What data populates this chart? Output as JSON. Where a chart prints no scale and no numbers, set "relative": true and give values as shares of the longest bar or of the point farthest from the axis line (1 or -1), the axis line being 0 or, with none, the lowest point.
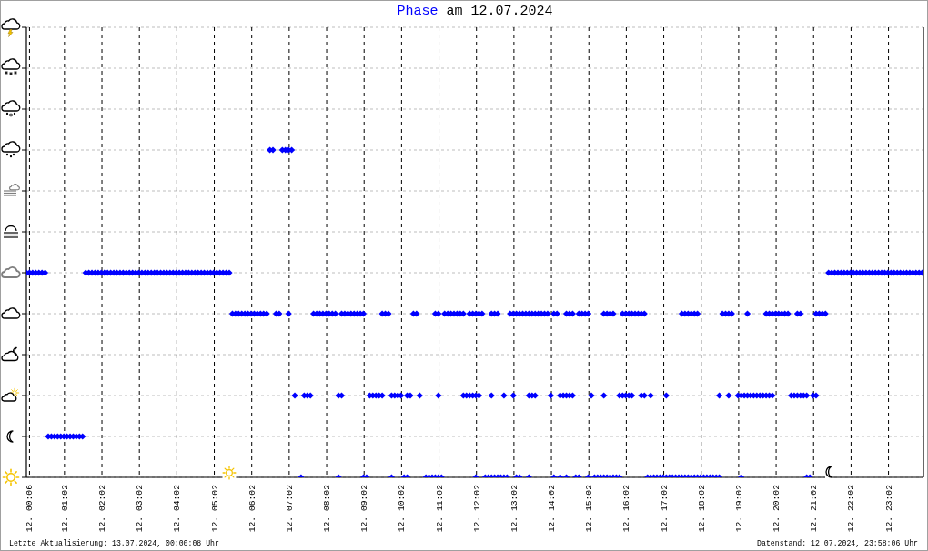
{
  "chart_data": {
    "type": "scatter",
    "title": "Phase am 12.07.2024",
    "annotations": [
      "Letzte Aktualisierung: 13.07.2024, 00:00:08 Uhr",
      "Datenstand: 12.07.2024, 23:58:06 Uhr"
    ],
    "xlim": [
      "2024-07-12T00:01",
      "2024-07-12T23:58"
    ],
    "xticks": [
      {
        "value": "2024-07-12T00:06",
        "label": "12. 00:06"
      },
      {
        "value": "2024-07-12T01:02",
        "label": "12. 01:02"
      },
      {
        "value": "2024-07-12T02:02",
        "label": "12. 02:02"
      },
      {
        "value": "2024-07-12T03:02",
        "label": "12. 03:02"
      },
      {
        "value": "2024-07-12T04:02",
        "label": "12. 04:02"
      },
      {
        "value": "2024-07-12T05:02",
        "label": "12. 05:02"
      },
      {
        "value": "2024-07-12T06:02",
        "label": "12. 06:02"
      },
      {
        "value": "2024-07-12T07:02",
        "label": "12. 07:02"
      },
      {
        "value": "2024-07-12T08:02",
        "label": "12. 08:02"
      },
      {
        "value": "2024-07-12T09:02",
        "label": "12. 09:02"
      },
      {
        "value": "2024-07-12T10:02",
        "label": "12. 10:02"
      },
      {
        "value": "2024-07-12T11:02",
        "label": "12. 11:02"
      },
      {
        "value": "2024-07-12T12:02",
        "label": "12. 12:02"
      },
      {
        "value": "2024-07-12T13:02",
        "label": "12. 13:02"
      },
      {
        "value": "2024-07-12T14:02",
        "label": "12. 14:02"
      },
      {
        "value": "2024-07-12T15:02",
        "label": "12. 15:02"
      },
      {
        "value": "2024-07-12T16:02",
        "label": "12. 16:02"
      },
      {
        "value": "2024-07-12T17:02",
        "label": "12. 17:02"
      },
      {
        "value": "2024-07-12T18:02",
        "label": "12. 18:02"
      },
      {
        "value": "2024-07-12T19:02",
        "label": "12. 19:02"
      },
      {
        "value": "2024-07-12T20:02",
        "label": "12. 20:02"
      },
      {
        "value": "2024-07-12T21:02",
        "label": "12. 21:02"
      },
      {
        "value": "2024-07-12T22:02",
        "label": "12. 22:02"
      },
      {
        "value": "2024-07-12T23:02",
        "label": "12. 23:02"
      }
    ],
    "relative": true,
    "tick_labels": "x",
    "grid": true,
    "marker": "diamond",
    "color": "#0000ff",
    "x": [
      "2024-07-12T00:01",
      "2024-07-12T00:06",
      "2024-07-12T00:11",
      "2024-07-12T00:16",
      "2024-07-12T00:21",
      "2024-07-12T00:26",
      "2024-07-12T00:31",
      "2024-07-12T01:36",
      "2024-07-12T01:41",
      "2024-07-12T01:46",
      "2024-07-12T01:51",
      "2024-07-12T01:56",
      "2024-07-12T02:01",
      "2024-07-12T02:06",
      "2024-07-12T02:11",
      "2024-07-12T02:16",
      "2024-07-12T02:21",
      "2024-07-12T02:26",
      "2024-07-12T02:31",
      "2024-07-12T02:36",
      "2024-07-12T02:41",
      "2024-07-12T02:46",
      "2024-07-12T02:51",
      "2024-07-12T02:56",
      "2024-07-12T03:01",
      "2024-07-12T03:06",
      "2024-07-12T03:11",
      "2024-07-12T03:16",
      "2024-07-12T03:21",
      "2024-07-12T03:26",
      "2024-07-12T03:31",
      "2024-07-12T03:36",
      "2024-07-12T03:41",
      "2024-07-12T03:46",
      "2024-07-12T03:51",
      "2024-07-12T03:56",
      "2024-07-12T04:01",
      "2024-07-12T04:06",
      "2024-07-12T04:11",
      "2024-07-12T04:16",
      "2024-07-12T04:21",
      "2024-07-12T04:26",
      "2024-07-12T04:31",
      "2024-07-12T04:36",
      "2024-07-12T04:41",
      "2024-07-12T04:46",
      "2024-07-12T04:51",
      "2024-07-12T04:56",
      "2024-07-12T05:01",
      "2024-07-12T05:06",
      "2024-07-12T05:11",
      "2024-07-12T05:16",
      "2024-07-12T05:21",
      "2024-07-12T05:26",
      "2024-07-12T21:26",
      "2024-07-12T21:31",
      "2024-07-12T21:36",
      "2024-07-12T21:41",
      "2024-07-12T21:46",
      "2024-07-12T21:51",
      "2024-07-12T21:56",
      "2024-07-12T22:01",
      "2024-07-12T22:06",
      "2024-07-12T22:11",
      "2024-07-12T22:16",
      "2024-07-12T22:21",
      "2024-07-12T22:26",
      "2024-07-12T22:31",
      "2024-07-12T22:36",
      "2024-07-12T22:41",
      "2024-07-12T22:46",
      "2024-07-12T22:51",
      "2024-07-12T22:56",
      "2024-07-12T23:01",
      "2024-07-12T23:06",
      "2024-07-12T23:11",
      "2024-07-12T23:16",
      "2024-07-12T23:21",
      "2024-07-12T23:26",
      "2024-07-12T23:31",
      "2024-07-12T23:36",
      "2024-07-12T23:41",
      "2024-07-12T23:46",
      "2024-07-12T23:51",
      "2024-07-12T23:56",
      "2024-07-12T00:36",
      "2024-07-12T00:41",
      "2024-07-12T00:46",
      "2024-07-12T00:51",
      "2024-07-12T00:56",
      "2024-07-12T01:01",
      "2024-07-12T01:06",
      "2024-07-12T01:11",
      "2024-07-12T01:16",
      "2024-07-12T01:21",
      "2024-07-12T01:26",
      "2024-07-12T01:31",
      "2024-07-12T06:31",
      "2024-07-12T06:36",
      "2024-07-12T06:51",
      "2024-07-12T06:56",
      "2024-07-12T07:01",
      "2024-07-12T07:06",
      "2024-07-12T05:31",
      "2024-07-12T05:36",
      "2024-07-12T05:41",
      "2024-07-12T05:46",
      "2024-07-12T05:51",
      "2024-07-12T05:56",
      "2024-07-12T06:01",
      "2024-07-12T06:06",
      "2024-07-12T06:11",
      "2024-07-12T06:16",
      "2024-07-12T06:21",
      "2024-07-12T06:26",
      "2024-07-12T06:41",
      "2024-07-12T06:46",
      "2024-07-12T07:01",
      "2024-07-12T07:41",
      "2024-07-12T07:46",
      "2024-07-12T07:51",
      "2024-07-12T07:56",
      "2024-07-12T08:01",
      "2024-07-12T08:06",
      "2024-07-12T08:11",
      "2024-07-12T08:16",
      "2024-07-12T08:26",
      "2024-07-12T08:31",
      "2024-07-12T08:36",
      "2024-07-12T08:41",
      "2024-07-12T08:46",
      "2024-07-12T08:51",
      "2024-07-12T08:56",
      "2024-07-12T09:01",
      "2024-07-12T09:31",
      "2024-07-12T09:36",
      "2024-07-12T09:41",
      "2024-07-12T10:21",
      "2024-07-12T10:26",
      "2024-07-12T10:56",
      "2024-07-12T11:01",
      "2024-07-12T11:11",
      "2024-07-12T11:16",
      "2024-07-12T11:21",
      "2024-07-12T11:26",
      "2024-07-12T11:31",
      "2024-07-12T11:36",
      "2024-07-12T11:41",
      "2024-07-12T11:51",
      "2024-07-12T11:56",
      "2024-07-12T12:01",
      "2024-07-12T12:06",
      "2024-07-12T12:11",
      "2024-07-12T12:26",
      "2024-07-12T12:31",
      "2024-07-12T12:36",
      "2024-07-12T12:56",
      "2024-07-12T13:01",
      "2024-07-12T13:06",
      "2024-07-12T13:11",
      "2024-07-12T13:16",
      "2024-07-12T13:21",
      "2024-07-12T13:26",
      "2024-07-12T13:31",
      "2024-07-12T13:36",
      "2024-07-12T13:41",
      "2024-07-12T13:46",
      "2024-07-12T13:51",
      "2024-07-12T13:56",
      "2024-07-12T14:06",
      "2024-07-12T14:11",
      "2024-07-12T14:26",
      "2024-07-12T14:31",
      "2024-07-12T14:36",
      "2024-07-12T14:46",
      "2024-07-12T14:51",
      "2024-07-12T14:56",
      "2024-07-12T15:01",
      "2024-07-12T15:26",
      "2024-07-12T15:31",
      "2024-07-12T15:36",
      "2024-07-12T15:41",
      "2024-07-12T15:56",
      "2024-07-12T16:01",
      "2024-07-12T16:06",
      "2024-07-12T16:11",
      "2024-07-12T16:16",
      "2024-07-12T16:21",
      "2024-07-12T16:26",
      "2024-07-12T16:31",
      "2024-07-12T17:31",
      "2024-07-12T17:36",
      "2024-07-12T17:41",
      "2024-07-12T17:46",
      "2024-07-12T17:51",
      "2024-07-12T17:56",
      "2024-07-12T18:36",
      "2024-07-12T18:41",
      "2024-07-12T18:46",
      "2024-07-12T18:51",
      "2024-07-12T19:16",
      "2024-07-12T19:46",
      "2024-07-12T19:51",
      "2024-07-12T19:56",
      "2024-07-12T20:01",
      "2024-07-12T20:06",
      "2024-07-12T20:11",
      "2024-07-12T20:16",
      "2024-07-12T20:21",
      "2024-07-12T20:36",
      "2024-07-12T20:41",
      "2024-07-12T21:06",
      "2024-07-12T21:11",
      "2024-07-12T21:16",
      "2024-07-12T21:21",
      "2024-07-12T07:11",
      "2024-07-12T07:26",
      "2024-07-12T07:31",
      "2024-07-12T07:36",
      "2024-07-12T08:21",
      "2024-07-12T08:26",
      "2024-07-12T09:11",
      "2024-07-12T09:16",
      "2024-07-12T09:21",
      "2024-07-12T09:26",
      "2024-07-12T09:31",
      "2024-07-12T09:46",
      "2024-07-12T09:51",
      "2024-07-12T09:56",
      "2024-07-12T10:01",
      "2024-07-12T10:11",
      "2024-07-12T10:16",
      "2024-07-12T10:31",
      "2024-07-12T11:01",
      "2024-07-12T11:41",
      "2024-07-12T11:46",
      "2024-07-12T11:51",
      "2024-07-12T11:56",
      "2024-07-12T12:01",
      "2024-07-12T12:06",
      "2024-07-12T12:26",
      "2024-07-12T12:46",
      "2024-07-12T13:01",
      "2024-07-12T13:26",
      "2024-07-12T13:31",
      "2024-07-12T13:36",
      "2024-07-12T14:01",
      "2024-07-12T14:16",
      "2024-07-12T14:21",
      "2024-07-12T14:26",
      "2024-07-12T14:31",
      "2024-07-12T14:36",
      "2024-07-12T15:06",
      "2024-07-12T15:26",
      "2024-07-12T15:51",
      "2024-07-12T15:56",
      "2024-07-12T16:01",
      "2024-07-12T16:06",
      "2024-07-12T16:11",
      "2024-07-12T16:26",
      "2024-07-12T16:31",
      "2024-07-12T16:41",
      "2024-07-12T17:06",
      "2024-07-12T18:31",
      "2024-07-12T18:46",
      "2024-07-12T19:01",
      "2024-07-12T19:06",
      "2024-07-12T19:11",
      "2024-07-12T19:16",
      "2024-07-12T19:21",
      "2024-07-12T19:26",
      "2024-07-12T19:31",
      "2024-07-12T19:36",
      "2024-07-12T19:41",
      "2024-07-12T19:46",
      "2024-07-12T19:51",
      "2024-07-12T19:56",
      "2024-07-12T20:26",
      "2024-07-12T20:31",
      "2024-07-12T20:36",
      "2024-07-12T20:41",
      "2024-07-12T20:46",
      "2024-07-12T20:51",
      "2024-07-12T21:01",
      "2024-07-12T21:06",
      "2024-07-12T07:21",
      "2024-07-12T08:21",
      "2024-07-12T09:01",
      "2024-07-12T09:06",
      "2024-07-12T09:46",
      "2024-07-12T10:06",
      "2024-07-12T10:11",
      "2024-07-12T10:41",
      "2024-07-12T10:46",
      "2024-07-12T10:51",
      "2024-07-12T10:56",
      "2024-07-12T11:01",
      "2024-07-12T11:06",
      "2024-07-12T12:01",
      "2024-07-12T12:16",
      "2024-07-12T12:21",
      "2024-07-12T12:26",
      "2024-07-12T12:31",
      "2024-07-12T12:36",
      "2024-07-12T12:41",
      "2024-07-12T12:46",
      "2024-07-12T12:51",
      "2024-07-12T13:06",
      "2024-07-12T13:11",
      "2024-07-12T13:26",
      "2024-07-12T14:06",
      "2024-07-12T14:16",
      "2024-07-12T14:26",
      "2024-07-12T14:41",
      "2024-07-12T14:46",
      "2024-07-12T15:01",
      "2024-07-12T15:11",
      "2024-07-12T15:16",
      "2024-07-12T15:21",
      "2024-07-12T15:26",
      "2024-07-12T15:31",
      "2024-07-12T15:36",
      "2024-07-12T15:41",
      "2024-07-12T15:46",
      "2024-07-12T15:51",
      "2024-07-12T16:36",
      "2024-07-12T16:41",
      "2024-07-12T16:46",
      "2024-07-12T16:51",
      "2024-07-12T16:56",
      "2024-07-12T17:01",
      "2024-07-12T17:06",
      "2024-07-12T17:11",
      "2024-07-12T17:16",
      "2024-07-12T17:21",
      "2024-07-12T17:26",
      "2024-07-12T17:31",
      "2024-07-12T17:36",
      "2024-07-12T17:41",
      "2024-07-12T17:46",
      "2024-07-12T17:51",
      "2024-07-12T17:56",
      "2024-07-12T18:01",
      "2024-07-12T18:06",
      "2024-07-12T18:11",
      "2024-07-12T18:16",
      "2024-07-12T18:21",
      "2024-07-12T18:26",
      "2024-07-12T18:31",
      "2024-07-12T19:06",
      "2024-07-12T20:51",
      "2024-07-12T20:56"
    ],
    "values": [
      0.625,
      0.625,
      0.625,
      0.625,
      0.625,
      0.625,
      0.625,
      0.625,
      0.625,
      0.625,
      0.625,
      0.625,
      0.625,
      0.625,
      0.625,
      0.625,
      0.625,
      0.625,
      0.625,
      0.625,
      0.625,
      0.625,
      0.625,
      0.625,
      0.625,
      0.625,
      0.625,
      0.625,
      0.625,
      0.625,
      0.625,
      0.625,
      0.625,
      0.625,
      0.625,
      0.625,
      0.625,
      0.625,
      0.625,
      0.625,
      0.625,
      0.625,
      0.625,
      0.625,
      0.625,
      0.625,
      0.625,
      0.625,
      0.625,
      0.625,
      0.625,
      0.625,
      0.625,
      0.625,
      0.625,
      0.625,
      0.625,
      0.625,
      0.625,
      0.625,
      0.625,
      0.625,
      0.625,
      0.625,
      0.625,
      0.625,
      0.625,
      0.625,
      0.625,
      0.625,
      0.625,
      0.625,
      0.625,
      0.625,
      0.625,
      0.625,
      0.625,
      0.625,
      0.625,
      0.625,
      0.625,
      0.625,
      0.625,
      0.625,
      0.625,
      0.125,
      0.125,
      0.125,
      0.125,
      0.125,
      0.125,
      0.125,
      0.125,
      0.125,
      0.125,
      0.125,
      0.125,
      1,
      1,
      1,
      1,
      1,
      1,
      0.5,
      0.5,
      0.5,
      0.5,
      0.5,
      0.5,
      0.5,
      0.5,
      0.5,
      0.5,
      0.5,
      0.5,
      0.5,
      0.5,
      0.5,
      0.5,
      0.5,
      0.5,
      0.5,
      0.5,
      0.5,
      0.5,
      0.5,
      0.5,
      0.5,
      0.5,
      0.5,
      0.5,
      0.5,
      0.5,
      0.5,
      0.5,
      0.5,
      0.5,
      0.5,
      0.5,
      0.5,
      0.5,
      0.5,
      0.5,
      0.5,
      0.5,
      0.5,
      0.5,
      0.5,
      0.5,
      0.5,
      0.5,
      0.5,
      0.5,
      0.5,
      0.5,
      0.5,
      0.5,
      0.5,
      0.5,
      0.5,
      0.5,
      0.5,
      0.5,
      0.5,
      0.5,
      0.5,
      0.5,
      0.5,
      0.5,
      0.5,
      0.5,
      0.5,
      0.5,
      0.5,
      0.5,
      0.5,
      0.5,
      0.5,
      0.5,
      0.5,
      0.5,
      0.5,
      0.5,
      0.5,
      0.5,
      0.5,
      0.5,
      0.5,
      0.5,
      0.5,
      0.5,
      0.5,
      0.5,
      0.5,
      0.5,
      0.5,
      0.5,
      0.5,
      0.5,
      0.5,
      0.5,
      0.5,
      0.5,
      0.5,
      0.5,
      0.5,
      0.5,
      0.5,
      0.5,
      0.5,
      0.5,
      0.5,
      0.5,
      0.5,
      0.5,
      0.25,
      0.25,
      0.25,
      0.25,
      0.25,
      0.25,
      0.25,
      0.25,
      0.25,
      0.25,
      0.25,
      0.25,
      0.25,
      0.25,
      0.25,
      0.25,
      0.25,
      0.25,
      0.25,
      0.25,
      0.25,
      0.25,
      0.25,
      0.25,
      0.25,
      0.25,
      0.25,
      0.25,
      0.25,
      0.25,
      0.25,
      0.25,
      0.25,
      0.25,
      0.25,
      0.25,
      0.25,
      0.25,
      0.25,
      0.25,
      0.25,
      0.25,
      0.25,
      0.25,
      0.25,
      0.25,
      0.25,
      0.25,
      0.25,
      0.25,
      0.25,
      0.25,
      0.25,
      0.25,
      0.25,
      0.25,
      0.25,
      0.25,
      0.25,
      0.25,
      0.25,
      0.25,
      0.25,
      0.25,
      0.25,
      0.25,
      0.25,
      0.25,
      0.25,
      0.25,
      0,
      0,
      0,
      0,
      0,
      0,
      0,
      0,
      0,
      0,
      0,
      0,
      0,
      0,
      0,
      0,
      0,
      0,
      0,
      0,
      0,
      0,
      0,
      0,
      0,
      0,
      0,
      0,
      0,
      0,
      0,
      0,
      0,
      0,
      0,
      0,
      0,
      0,
      0,
      0,
      0,
      0,
      0,
      0,
      0,
      0,
      0,
      0,
      0,
      0,
      0,
      0,
      0,
      0,
      0,
      0,
      0,
      0,
      0,
      0,
      0,
      0,
      0,
      0,
      0,
      0,
      0
    ]
  }
}
